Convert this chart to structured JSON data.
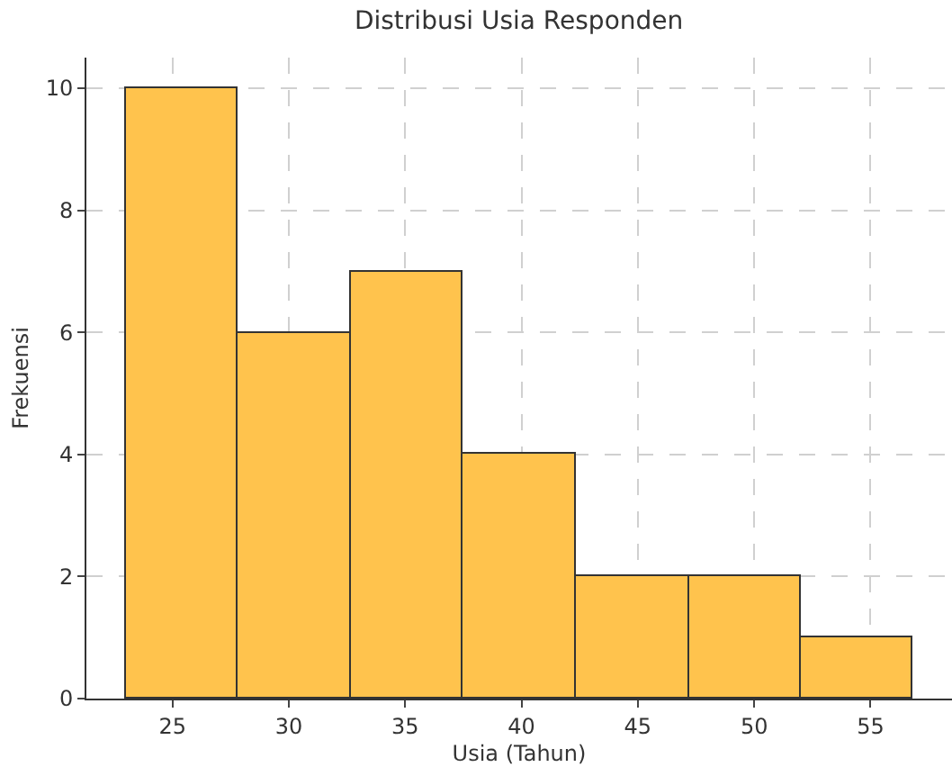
{
  "chart_data": {
    "type": "histogram",
    "title": "Distribusi Usia Responden",
    "xlabel": "Usia (Tahun)",
    "ylabel": "Frekuensi",
    "bins": [
      23,
      27.8,
      32.7,
      37.5,
      42.3,
      47.2,
      52,
      56.8
    ],
    "values": [
      10,
      6,
      7,
      4,
      2,
      2,
      1
    ],
    "color": "#ffc34d",
    "xlim": [
      21.3,
      58.5
    ],
    "xticks": [
      25,
      30,
      35,
      40,
      45,
      50,
      55
    ],
    "ylim": [
      0,
      10.5
    ],
    "yticks": [
      0,
      2,
      4,
      6,
      8,
      10
    ],
    "grid": true
  }
}
